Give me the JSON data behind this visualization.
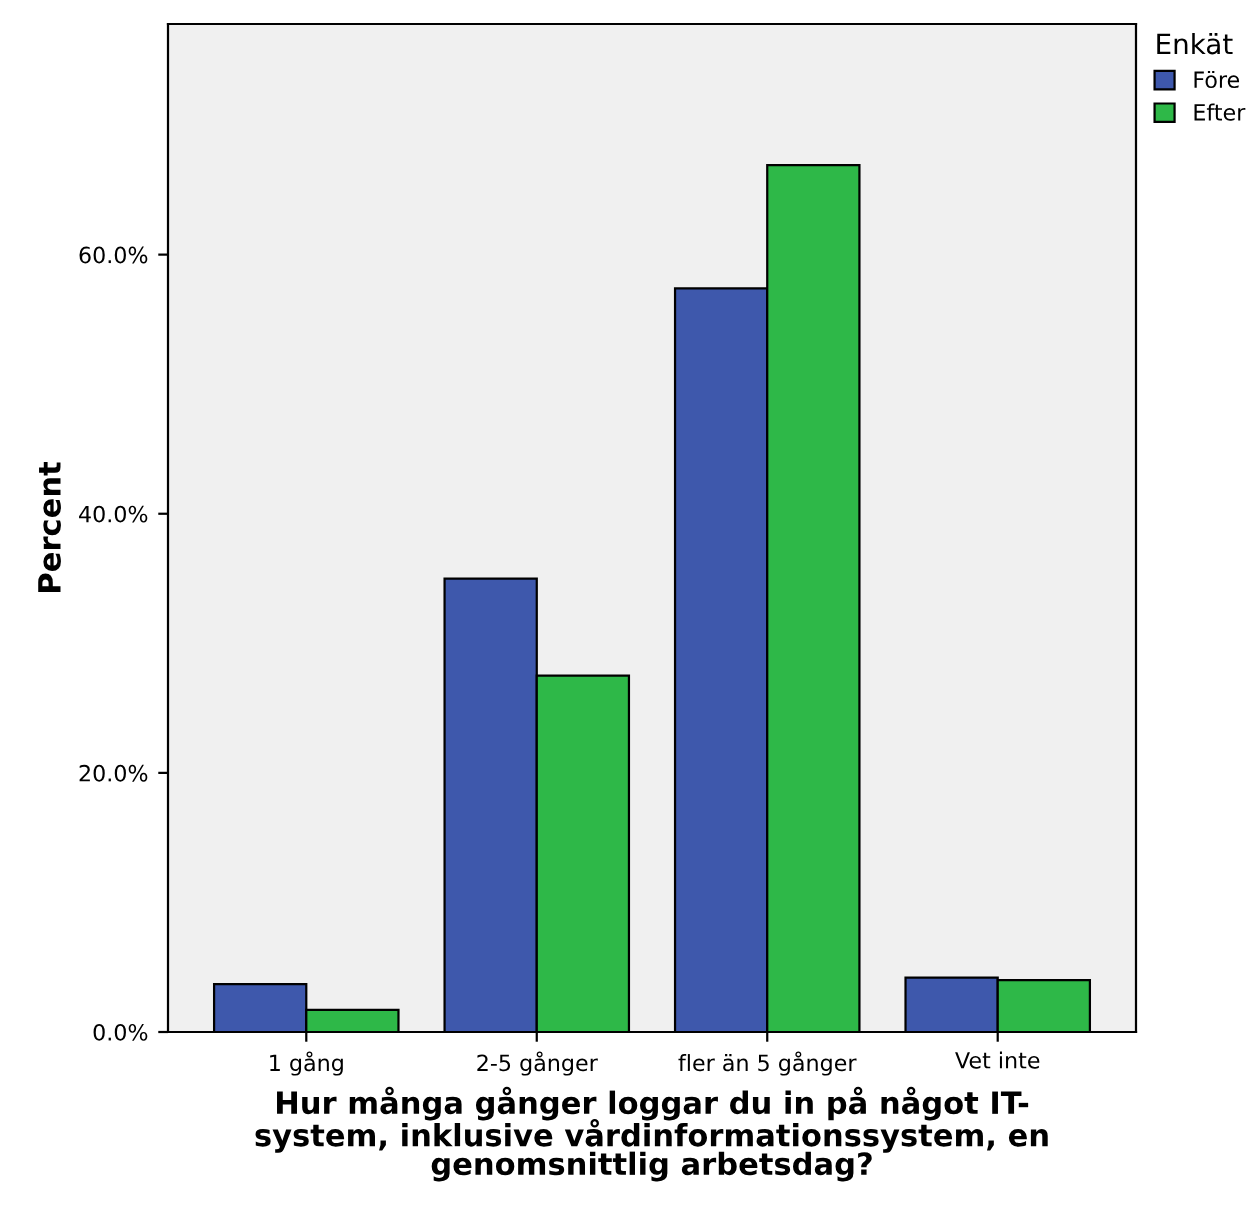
{
  "chart_data": {
    "type": "bar",
    "xlabel": "Hur många gånger loggar du in på något IT-\nsystem, inklusive vårdinformationssystem, en\ngenomsnittlig arbetsdag?",
    "ylabel": "Percent",
    "legend_title": "Enkät",
    "categories": [
      "1 gång",
      "2-5 gånger",
      "fler än 5 gånger",
      "Vet inte"
    ],
    "series": [
      {
        "name": "Före",
        "color": "#3e58ac",
        "values": [
          3.7,
          35.0,
          57.4,
          4.2
        ]
      },
      {
        "name": "Efter",
        "color": "#2eb848",
        "values": [
          1.7,
          27.5,
          66.9,
          4.0
        ]
      }
    ],
    "ylim": [
      0,
      77.8
    ],
    "yticks": [
      {
        "value": 0,
        "label": "0.0%"
      },
      {
        "value": 20,
        "label": "20.0%"
      },
      {
        "value": 40,
        "label": "40.0%"
      },
      {
        "value": 60,
        "label": "60.0%"
      }
    ],
    "grid": false,
    "legend": "top right"
  }
}
